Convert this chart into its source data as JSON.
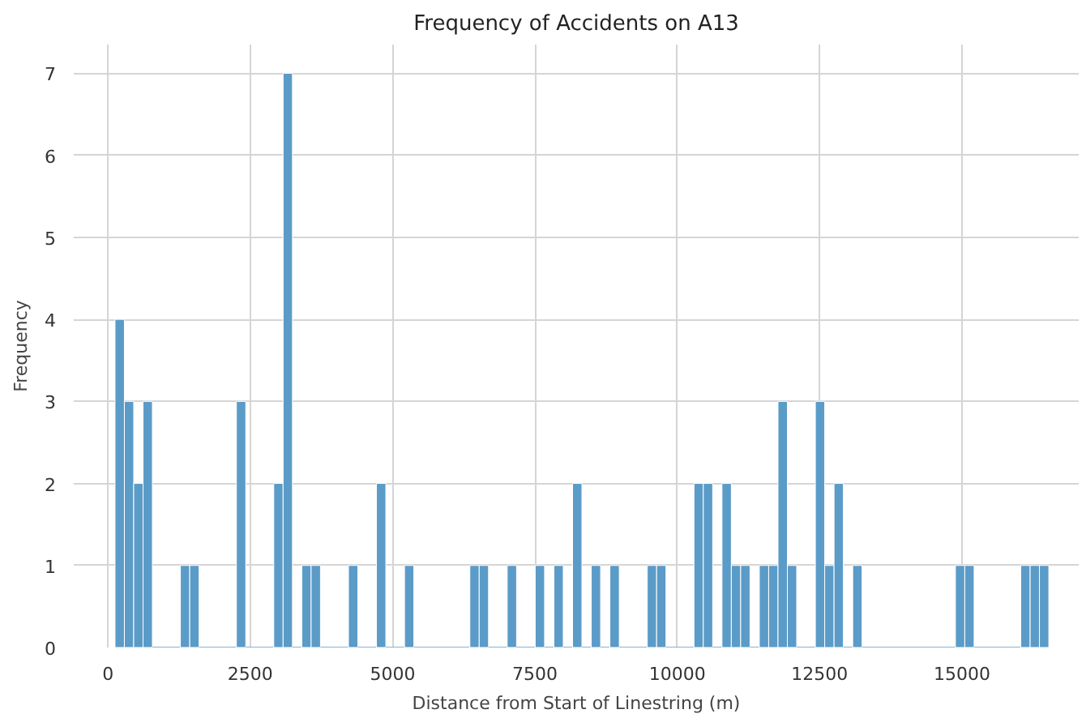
{
  "chart_data": {
    "type": "histogram",
    "title": "Frequency of Accidents on A13",
    "xlabel": "Distance from Start of Linestring (m)",
    "ylabel": "Frequency",
    "bins": [
      125,
      289,
      453,
      617,
      781,
      945,
      1109,
      1273,
      1437,
      1601,
      1765,
      1929,
      2093,
      2257,
      2421,
      2585,
      2749,
      2913,
      3077,
      3241,
      3405,
      3569,
      3733,
      3897,
      4061,
      4225,
      4389,
      4553,
      4717,
      4881,
      5045,
      5209,
      5373,
      5537,
      5701,
      5865,
      6029,
      6193,
      6357,
      6521,
      6685,
      6849,
      7013,
      7177,
      7341,
      7505,
      7669,
      7833,
      7997,
      8161,
      8325,
      8489,
      8653,
      8817,
      8981,
      9145,
      9309,
      9473,
      9637,
      9801,
      9965,
      10129,
      10293,
      10457,
      10621,
      10785,
      10949,
      11113,
      11277,
      11441,
      11605,
      11769,
      11933,
      12097,
      12261,
      12425,
      12589,
      12753,
      12917,
      13081,
      13245,
      13409,
      13573,
      13737,
      13901,
      14065,
      14229,
      14393,
      14557,
      14721,
      14885,
      15049,
      15213,
      15377,
      15541,
      15705,
      15869,
      16033,
      16197,
      16361,
      16525
    ],
    "values": [
      4,
      3,
      2,
      3,
      0,
      0,
      0,
      1,
      1,
      0,
      0,
      0,
      0,
      3,
      0,
      0,
      0,
      2,
      7,
      0,
      1,
      1,
      0,
      0,
      0,
      1,
      0,
      0,
      2,
      0,
      0,
      1,
      0,
      0,
      0,
      0,
      0,
      0,
      1,
      1,
      0,
      0,
      1,
      0,
      0,
      1,
      0,
      1,
      0,
      2,
      0,
      1,
      0,
      1,
      0,
      0,
      0,
      1,
      1,
      0,
      0,
      0,
      2,
      2,
      0,
      2,
      1,
      1,
      0,
      1,
      1,
      3,
      1,
      0,
      0,
      3,
      1,
      2,
      0,
      1,
      0,
      0,
      0,
      0,
      0,
      0,
      0,
      0,
      0,
      0,
      1,
      1,
      0,
      0,
      0,
      0,
      0,
      1,
      1,
      1
    ],
    "color": "#5b9bc8",
    "xlim": [
      -600,
      17050
    ],
    "ylim": [
      0,
      7.35
    ],
    "xticks": [
      0,
      2500,
      5000,
      7500,
      10000,
      12500,
      15000
    ],
    "yticks": [
      0,
      1,
      2,
      3,
      4,
      5,
      6,
      7
    ],
    "grid": true
  }
}
